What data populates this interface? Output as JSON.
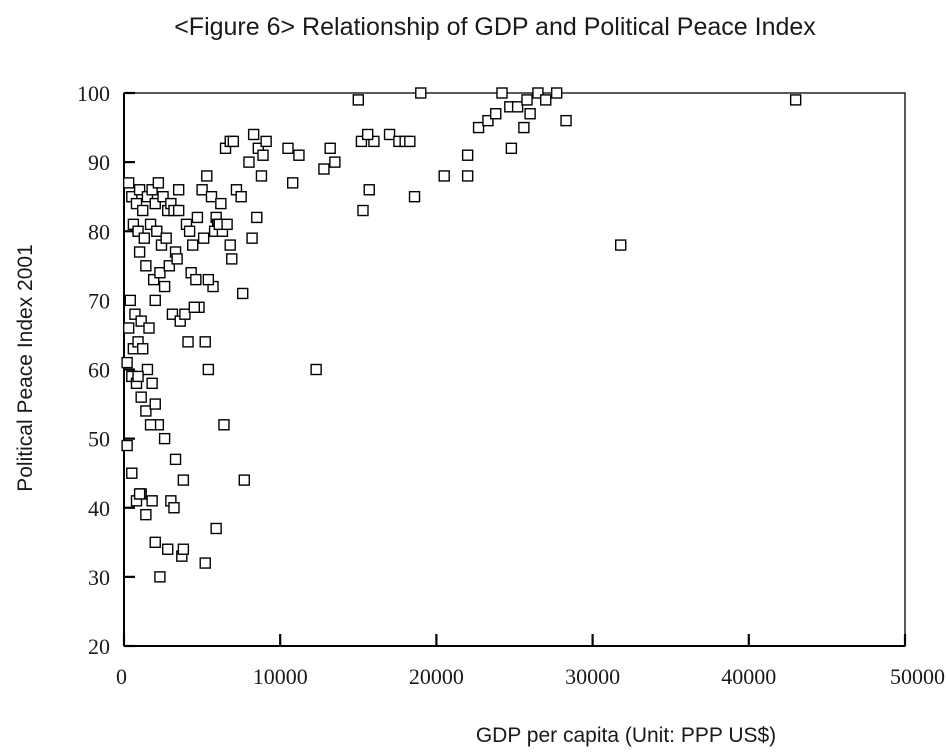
{
  "chart_data": {
    "type": "scatter",
    "title": "<Figure 6> Relationship of GDP and Political Peace Index",
    "xlabel": "GDP per capita (Unit: PPP US$)",
    "ylabel": "Political Peace Index 2001",
    "xlim": [
      0,
      50000
    ],
    "ylim": [
      20,
      100
    ],
    "xticks": [
      "0",
      "10000",
      "20000",
      "30000",
      "40000",
      "50000"
    ],
    "yticks": [
      "20",
      "30",
      "40",
      "50",
      "60",
      "70",
      "80",
      "90",
      "100"
    ],
    "grid": false,
    "legend": "none",
    "series": [
      {
        "x": [
          300,
          500,
          800,
          1000,
          1200,
          1500,
          1800,
          2000,
          2200,
          2500,
          2800,
          3000,
          3200,
          3500,
          600,
          900,
          1300,
          1700,
          2100,
          2400,
          2700,
          3300,
          1000,
          1400,
          1900,
          2300,
          2900,
          3400,
          400,
          700,
          1100,
          1600,
          2000,
          2600,
          3100,
          300,
          600,
          900,
          1200,
          1500,
          1800,
          200,
          500,
          800,
          1100,
          1400,
          2200,
          2600,
          3300,
          3800,
          200,
          500,
          800,
          1100,
          1400,
          2000,
          2300,
          2800,
          3700,
          900,
          1700,
          2000,
          1000,
          3000,
          3200,
          1800,
          3500,
          4000,
          4200,
          4400,
          4700,
          5000,
          5300,
          5600,
          5900,
          6000,
          6200,
          6500,
          6800,
          7000,
          7200,
          7500,
          4300,
          4600,
          5100,
          5800,
          6300,
          6900,
          4800,
          5200,
          5700,
          6100,
          6600,
          3600,
          3900,
          4100,
          4500,
          5400,
          7600,
          6800,
          5400,
          3800,
          6400,
          7700,
          5900,
          5200,
          8000,
          8300,
          8600,
          8900,
          9100,
          8200,
          8500,
          8800,
          10500,
          11200,
          10800,
          12800,
          13200,
          13500,
          12300,
          15000,
          15300,
          15700,
          16000,
          15200,
          15600,
          17000,
          17600,
          18000,
          18300,
          18600,
          19000,
          20500,
          22000,
          22700,
          23300,
          23800,
          24200,
          24700,
          25200,
          25600,
          26000,
          26500,
          27000,
          27700,
          28300,
          24800,
          22000,
          25800,
          31800,
          43000
        ],
        "y": [
          87,
          85,
          84,
          86,
          83,
          85,
          86,
          84,
          87,
          85,
          83,
          84,
          83,
          86,
          81,
          80,
          79,
          81,
          80,
          78,
          79,
          77,
          77,
          75,
          73,
          74,
          75,
          76,
          70,
          68,
          67,
          66,
          70,
          72,
          68,
          66,
          63,
          64,
          63,
          60,
          58,
          61,
          59,
          58,
          56,
          54,
          52,
          50,
          47,
          44,
          49,
          45,
          41,
          42,
          39,
          35,
          30,
          34,
          33,
          59,
          52,
          55,
          42,
          41,
          40,
          41,
          83,
          81,
          80,
          78,
          82,
          86,
          88,
          85,
          82,
          81,
          84,
          92,
          93,
          93,
          86,
          85,
          74,
          73,
          79,
          80,
          80,
          76,
          69,
          64,
          72,
          81,
          81,
          67,
          68,
          64,
          69,
          73,
          71,
          78,
          60,
          34,
          52,
          44,
          37,
          32,
          90,
          94,
          92,
          91,
          93,
          79,
          82,
          88,
          92,
          91,
          87,
          89,
          92,
          90,
          60,
          99,
          83,
          86,
          93,
          93,
          94,
          94,
          93,
          93,
          93,
          85,
          100,
          88,
          88,
          95,
          96,
          97,
          100,
          98,
          98,
          95,
          97,
          100,
          99,
          100,
          96,
          92,
          91,
          99,
          78,
          99
        ]
      }
    ]
  }
}
